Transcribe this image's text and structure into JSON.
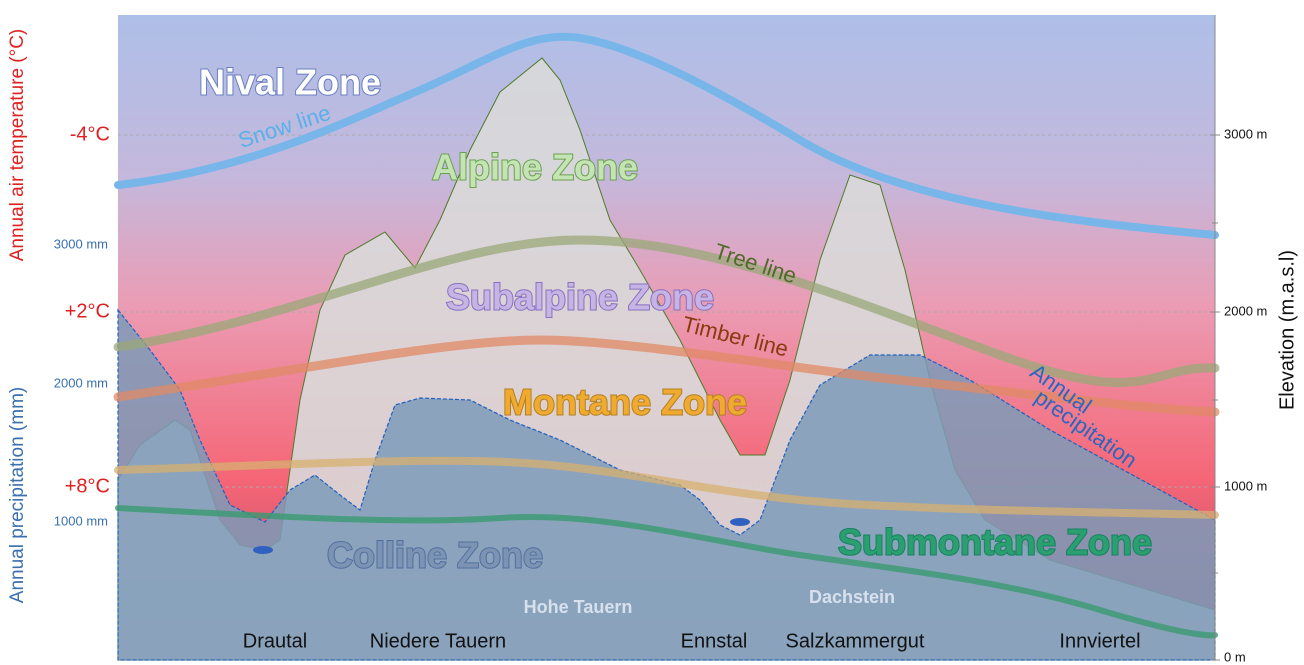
{
  "axes": {
    "temperature_title": "Annual air temperature (°C)",
    "temperature_ticks": [
      "-4°C",
      "+2°C",
      "+8°C"
    ],
    "precipitation_title": "Annual precipitation (mm)",
    "precipitation_ticks": [
      "3000 mm",
      "2000 mm",
      "1000 mm"
    ],
    "elevation_title": "Elevation (m.a.s.l)",
    "elevation_ticks": [
      "3000 m",
      "2000 m",
      "1000 m",
      "0 m"
    ]
  },
  "zones": [
    "Nival Zone",
    "Alpine Zone",
    "Subalpine Zone",
    "Montane Zone",
    "Colline Zone",
    "Submontane Zone"
  ],
  "lines": [
    "Snow line",
    "Tree line",
    "Timber line"
  ],
  "precipitation_label": [
    "Annual",
    "precipitation"
  ],
  "places": [
    "Drautal",
    "Niedere Tauern",
    "Ennstal",
    "Salzkammergut",
    "Innviertel"
  ],
  "peaks": [
    "Hohe Tauern",
    "Dachstein"
  ]
}
